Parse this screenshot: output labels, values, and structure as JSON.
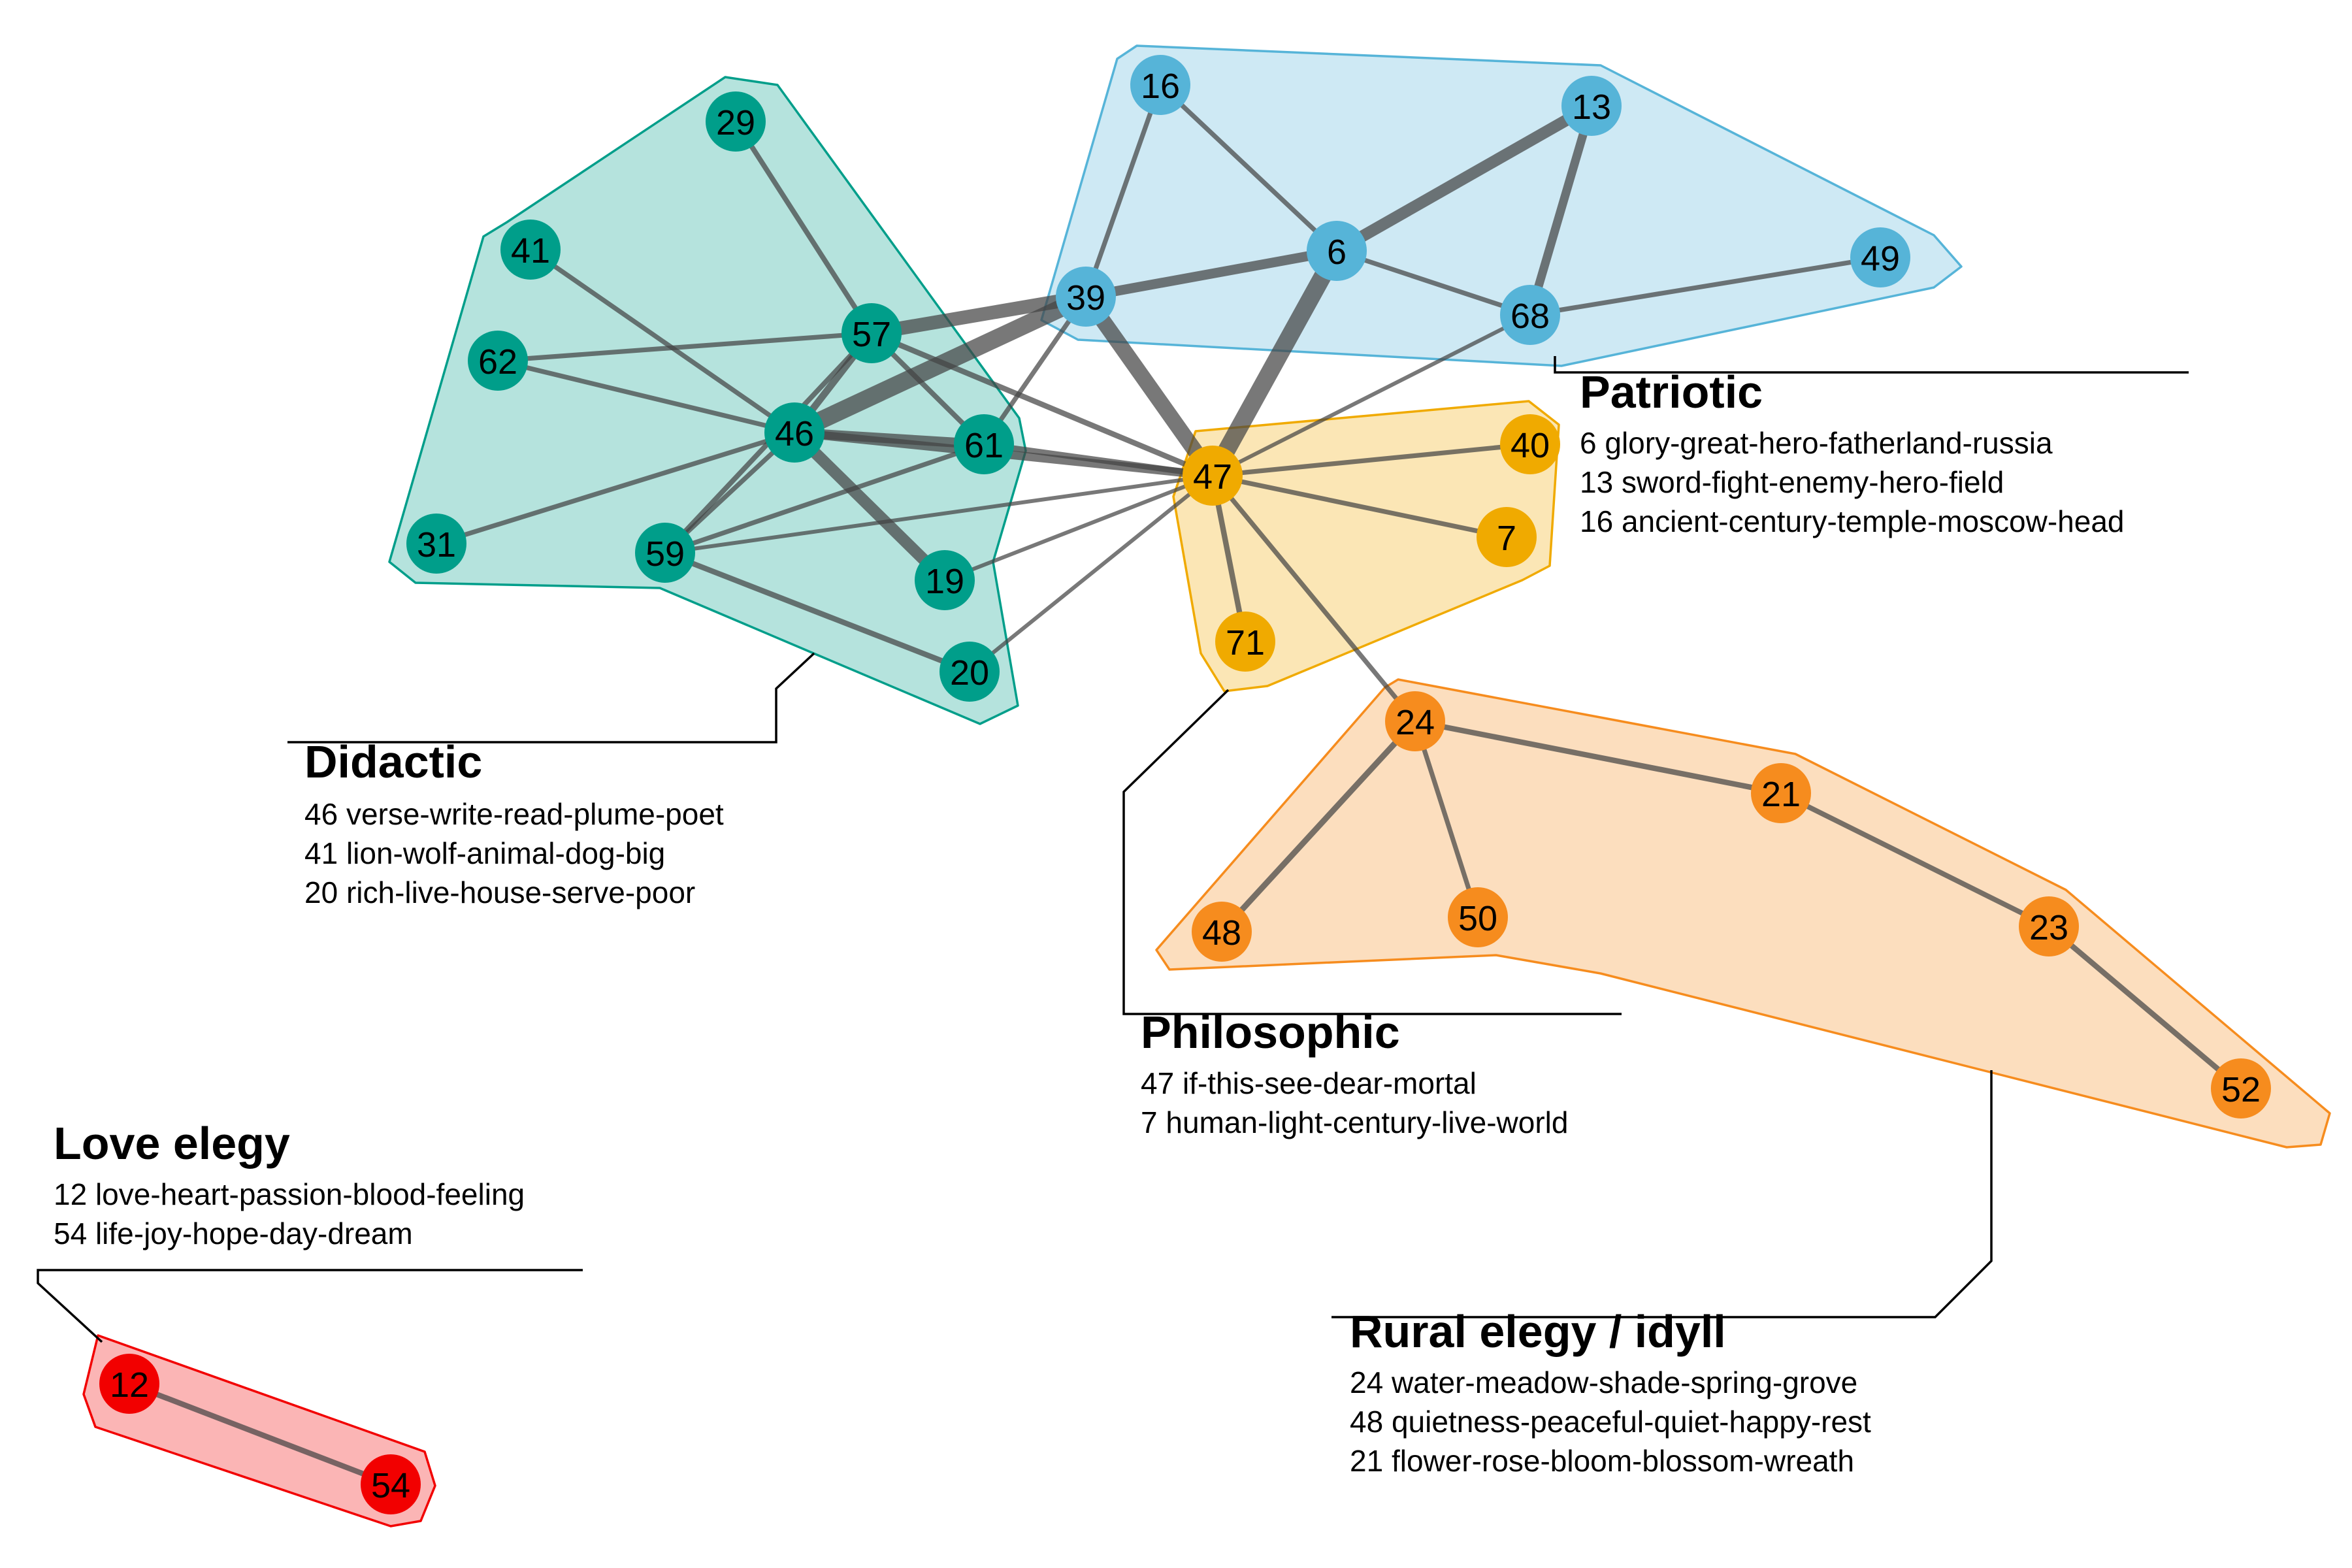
{
  "colors": {
    "didactic": "#009E8A",
    "patriotic": "#56B4D8",
    "philosophic": "#F0AA00",
    "rural": "#F68C1E",
    "love": "#F20000",
    "edge": "#444444"
  },
  "groups": [
    {
      "id": "didactic",
      "title": "Didactic",
      "topics": [
        "46 verse-write-read-plume-poet",
        "41 lion-wolf-animal-dog-big",
        "20 rich-live-house-serve-poor"
      ]
    },
    {
      "id": "patriotic",
      "title": "Patriotic",
      "topics": [
        "6 glory-great-hero-fatherland-russia",
        "13 sword-fight-enemy-hero-field",
        "16 ancient-century-temple-moscow-head"
      ]
    },
    {
      "id": "philosophic",
      "title": "Philosophic",
      "topics": [
        "47 if-this-see-dear-mortal",
        "7 human-light-century-live-world"
      ]
    },
    {
      "id": "rural",
      "title": "Rural elegy / idyll",
      "topics": [
        "24 water-meadow-shade-spring-grove",
        "48 quietness-peaceful-quiet-happy-rest",
        "21 flower-rose-bloom-blossom-wreath"
      ]
    },
    {
      "id": "love",
      "title": "Love elegy",
      "topics": [
        "12 love-heart-passion-blood-feeling",
        "54 life-joy-hope-day-dream"
      ]
    }
  ],
  "nodes": [
    {
      "id": "29",
      "group": "didactic"
    },
    {
      "id": "41",
      "group": "didactic"
    },
    {
      "id": "62",
      "group": "didactic"
    },
    {
      "id": "57",
      "group": "didactic"
    },
    {
      "id": "46",
      "group": "didactic"
    },
    {
      "id": "61",
      "group": "didactic"
    },
    {
      "id": "31",
      "group": "didactic"
    },
    {
      "id": "59",
      "group": "didactic"
    },
    {
      "id": "19",
      "group": "didactic"
    },
    {
      "id": "20",
      "group": "didactic"
    },
    {
      "id": "16",
      "group": "patriotic"
    },
    {
      "id": "13",
      "group": "patriotic"
    },
    {
      "id": "6",
      "group": "patriotic"
    },
    {
      "id": "39",
      "group": "patriotic"
    },
    {
      "id": "68",
      "group": "patriotic"
    },
    {
      "id": "49",
      "group": "patriotic"
    },
    {
      "id": "47",
      "group": "philosophic"
    },
    {
      "id": "40",
      "group": "philosophic"
    },
    {
      "id": "7",
      "group": "philosophic"
    },
    {
      "id": "71",
      "group": "philosophic"
    },
    {
      "id": "24",
      "group": "rural"
    },
    {
      "id": "21",
      "group": "rural"
    },
    {
      "id": "48",
      "group": "rural"
    },
    {
      "id": "50",
      "group": "rural"
    },
    {
      "id": "23",
      "group": "rural"
    },
    {
      "id": "52",
      "group": "rural"
    },
    {
      "id": "12",
      "group": "love"
    },
    {
      "id": "54",
      "group": "love"
    }
  ],
  "edges": [
    {
      "source": "46",
      "target": "39",
      "weight": 4.5
    },
    {
      "source": "57",
      "target": "39",
      "weight": 3.5
    },
    {
      "source": "39",
      "target": "47",
      "weight": 4
    },
    {
      "source": "6",
      "target": "47",
      "weight": 4.5
    },
    {
      "source": "6",
      "target": "13",
      "weight": 3
    },
    {
      "source": "39",
      "target": "6",
      "weight": 2.5
    },
    {
      "source": "46",
      "target": "19",
      "weight": 3
    },
    {
      "source": "46",
      "target": "61",
      "weight": 2.5
    },
    {
      "source": "46",
      "target": "47",
      "weight": 2.2
    },
    {
      "source": "13",
      "target": "68",
      "weight": 2.2
    },
    {
      "source": "46",
      "target": "57",
      "weight": 1.8
    },
    {
      "source": "61",
      "target": "47",
      "weight": 1.5
    },
    {
      "source": "57",
      "target": "47",
      "weight": 1.4
    },
    {
      "source": "57",
      "target": "61",
      "weight": 1.3
    },
    {
      "source": "57",
      "target": "59",
      "weight": 1.3
    },
    {
      "source": "59",
      "target": "20",
      "weight": 1.4
    },
    {
      "source": "29",
      "target": "57",
      "weight": 1.3
    },
    {
      "source": "41",
      "target": "46",
      "weight": 1.2
    },
    {
      "source": "62",
      "target": "57",
      "weight": 1.2
    },
    {
      "source": "62",
      "target": "46",
      "weight": 1.2
    },
    {
      "source": "31",
      "target": "46",
      "weight": 1.2
    },
    {
      "source": "59",
      "target": "46",
      "weight": 1.2
    },
    {
      "source": "59",
      "target": "61",
      "weight": 1.2
    },
    {
      "source": "59",
      "target": "47",
      "weight": 1.0
    },
    {
      "source": "19",
      "target": "47",
      "weight": 1.0
    },
    {
      "source": "20",
      "target": "47",
      "weight": 1.0
    },
    {
      "source": "61",
      "target": "39",
      "weight": 1.2
    },
    {
      "source": "16",
      "target": "6",
      "weight": 1.2
    },
    {
      "source": "16",
      "target": "39",
      "weight": 1.2
    },
    {
      "source": "6",
      "target": "68",
      "weight": 1.2
    },
    {
      "source": "68",
      "target": "49",
      "weight": 1.2
    },
    {
      "source": "68",
      "target": "47",
      "weight": 1.0
    },
    {
      "source": "47",
      "target": "40",
      "weight": 1.2
    },
    {
      "source": "47",
      "target": "7",
      "weight": 1.2
    },
    {
      "source": "47",
      "target": "71",
      "weight": 1.4
    },
    {
      "source": "47",
      "target": "24",
      "weight": 1.2
    },
    {
      "source": "24",
      "target": "21",
      "weight": 1.4
    },
    {
      "source": "24",
      "target": "48",
      "weight": 1.5
    },
    {
      "source": "24",
      "target": "50",
      "weight": 1.2
    },
    {
      "source": "21",
      "target": "23",
      "weight": 1.3
    },
    {
      "source": "23",
      "target": "52",
      "weight": 1.4
    },
    {
      "source": "12",
      "target": "54",
      "weight": 1.4
    }
  ]
}
